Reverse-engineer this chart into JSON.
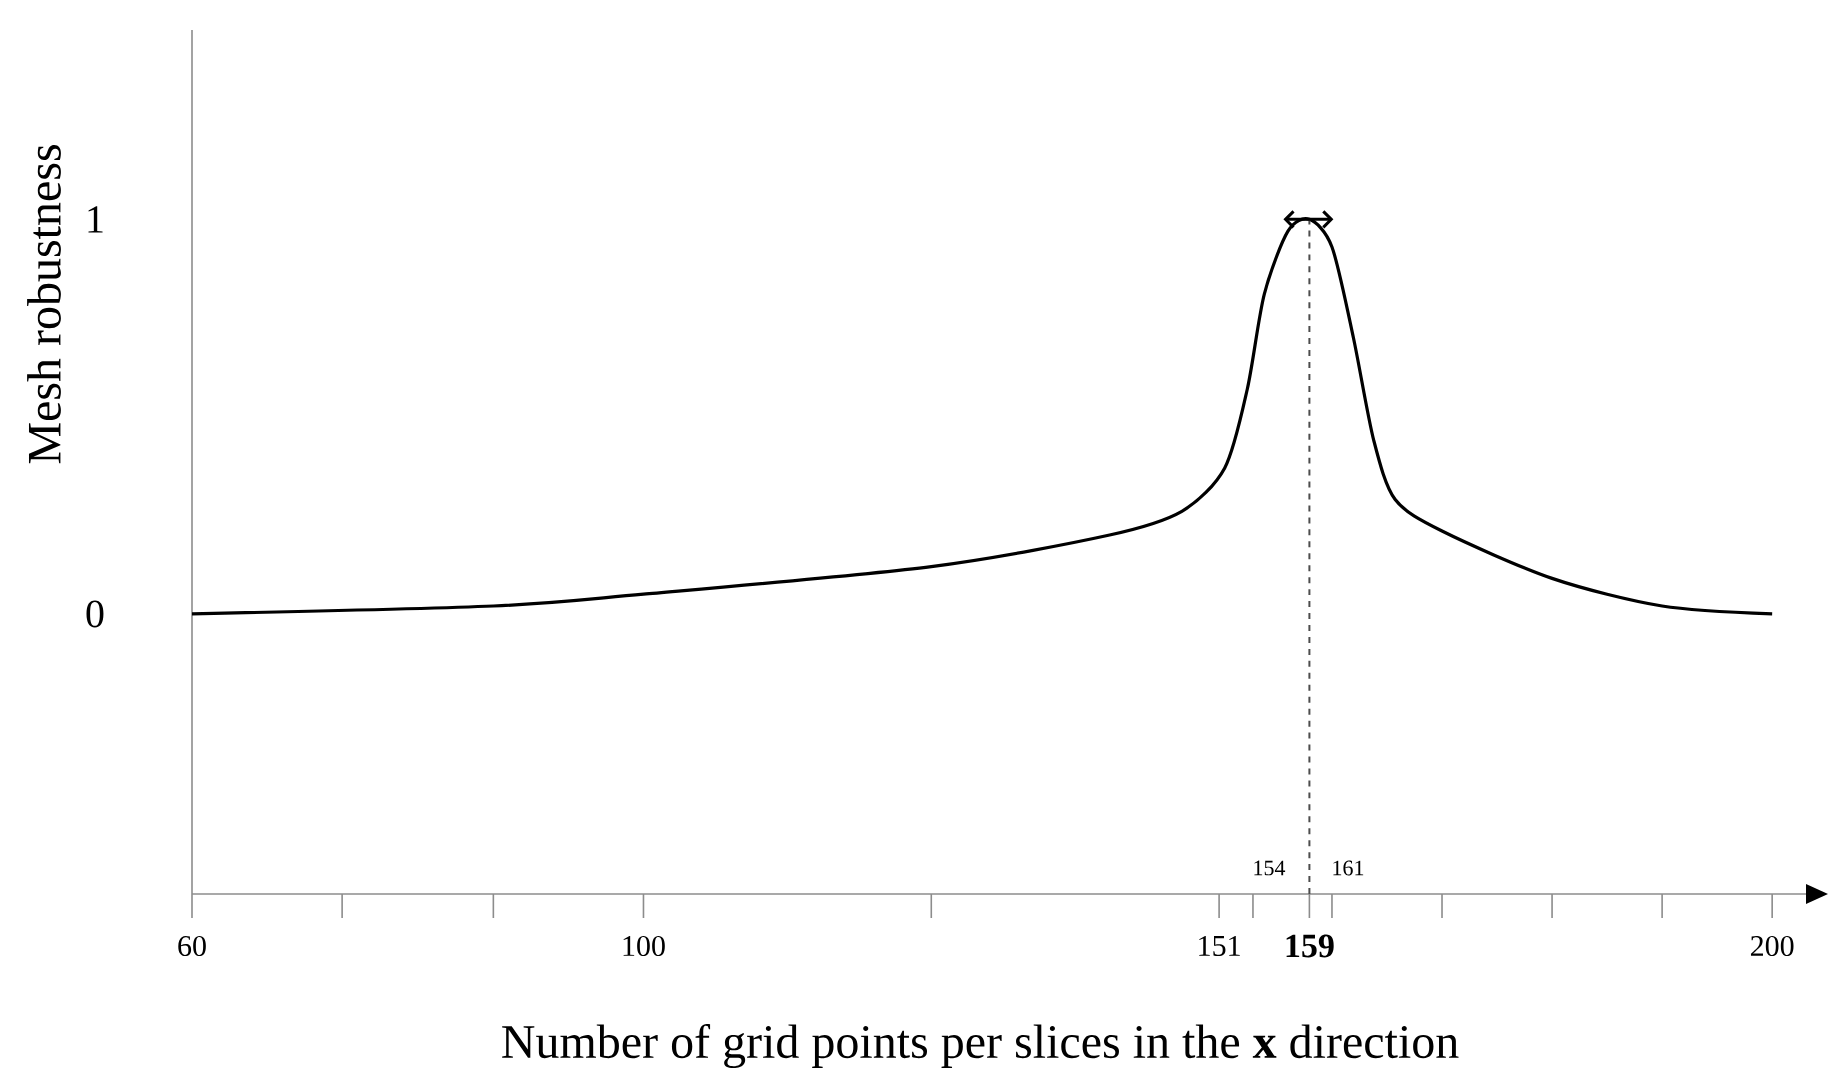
{
  "chart_data": {
    "type": "line",
    "xlabel": "Number of grid points per slices in the **x** direction",
    "ylabel": "Mesh robustness",
    "x": [
      60,
      86.7,
      100,
      125.5,
      141.3,
      147.7,
      151.5,
      153.5,
      155,
      157.1,
      159,
      161,
      162.9,
      164.7,
      166.6,
      170.75,
      180.5,
      190.25,
      200
    ],
    "series": [
      {
        "color": "#000000",
        "values": [
          0,
          0.02,
          0.05,
          0.12,
          0.2,
          0.26,
          0.37,
          0.57,
          0.81,
          0.97,
          1.0,
          0.93,
          0.7,
          0.44,
          0.29,
          0.21,
          0.09,
          0.02,
          0
        ]
      }
    ],
    "xlim": [
      60,
      203
    ],
    "ylim": [
      -0.71,
      1.48
    ],
    "xticks": [
      60,
      {
        "value": 73.3,
        "label": null
      },
      {
        "value": 86.7,
        "label": null
      },
      100,
      {
        "value": 125.5,
        "label": null
      },
      151,
      {
        "value": 154,
        "label": null
      },
      159,
      {
        "value": 161,
        "label": null
      },
      {
        "value": 170.75,
        "label": null
      },
      {
        "value": 180.5,
        "label": null
      },
      {
        "value": 190.25,
        "label": null
      },
      200
    ],
    "yticks": [
      0,
      1
    ],
    "annotations": [
      "154",
      "161"
    ],
    "ref_lines": [
      {
        "axis": "x",
        "value": 159,
        "line_style": "dashed"
      }
    ]
  }
}
